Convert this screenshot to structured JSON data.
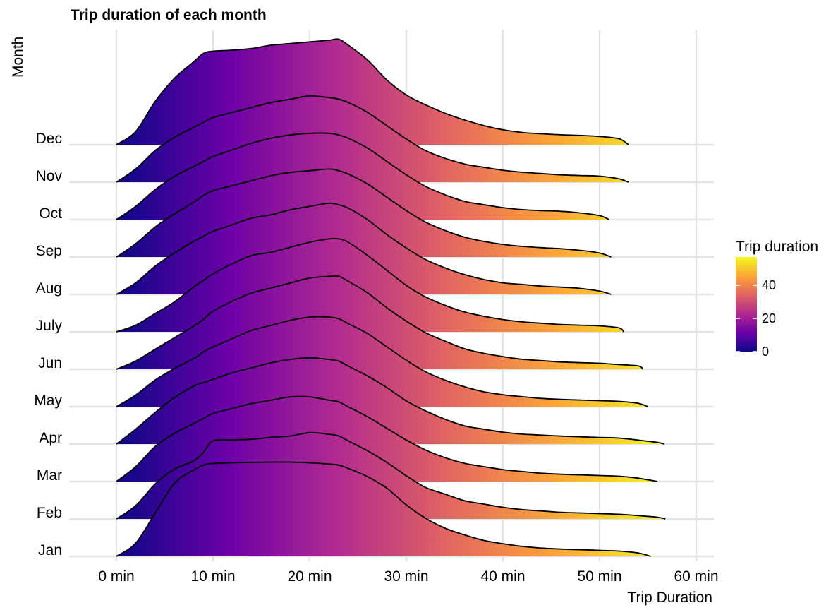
{
  "chart_data": {
    "type": "ridgeline",
    "title": "Trip duration of each month",
    "xlabel": "Trip Duration",
    "ylabel": "Month",
    "x_ticks": [
      {
        "value": 0,
        "label": "0 min"
      },
      {
        "value": 10,
        "label": "10 min"
      },
      {
        "value": 20,
        "label": "20 min"
      },
      {
        "value": 30,
        "label": "30 min"
      },
      {
        "value": 40,
        "label": "40 min"
      },
      {
        "value": 50,
        "label": "50 min"
      },
      {
        "value": 60,
        "label": "60 min"
      }
    ],
    "xlim": [
      -2.5,
      62
    ],
    "grid": true,
    "fill": "gradient along x (plasma palette)",
    "legend": {
      "title": "Trip duration",
      "placement": "right",
      "ticks": [
        0,
        20,
        40
      ],
      "range": [
        0,
        57
      ],
      "colors": [
        "#0d0887",
        "#6a00a8",
        "#b12a90",
        "#e16462",
        "#fca636",
        "#f0f921"
      ]
    },
    "x": [
      0,
      2,
      4,
      6,
      8,
      9,
      10,
      12,
      14,
      16,
      18,
      20,
      22,
      23,
      24,
      26,
      28,
      30,
      32,
      34,
      36,
      38,
      40,
      42,
      44,
      46,
      48,
      50,
      52,
      54,
      56
    ],
    "series": [
      {
        "name": "Jan",
        "end": 55.3,
        "heights": [
          0.0,
          0.4,
          1.3,
          2.2,
          2.6,
          2.75,
          2.8,
          2.82,
          2.83,
          2.84,
          2.84,
          2.82,
          2.78,
          2.75,
          2.65,
          2.4,
          2.05,
          1.55,
          1.15,
          0.85,
          0.65,
          0.48,
          0.38,
          0.3,
          0.25,
          0.22,
          0.2,
          0.18,
          0.16,
          0.1,
          0.05
        ]
      },
      {
        "name": "Feb",
        "end": 56.8,
        "heights": [
          0.0,
          0.4,
          1.05,
          1.5,
          1.75,
          2.0,
          2.35,
          2.38,
          2.4,
          2.46,
          2.5,
          2.6,
          2.55,
          2.5,
          2.35,
          2.05,
          1.7,
          1.3,
          0.95,
          0.75,
          0.55,
          0.45,
          0.35,
          0.28,
          0.24,
          0.2,
          0.18,
          0.16,
          0.14,
          0.1,
          0.05
        ]
      },
      {
        "name": "Mar",
        "end": 56.0,
        "heights": [
          0.0,
          0.45,
          1.05,
          1.45,
          1.75,
          1.9,
          2.05,
          2.2,
          2.35,
          2.45,
          2.55,
          2.55,
          2.45,
          2.4,
          2.25,
          1.95,
          1.6,
          1.25,
          0.95,
          0.72,
          0.55,
          0.45,
          0.36,
          0.3,
          0.25,
          0.22,
          0.2,
          0.18,
          0.16,
          0.1,
          0.05
        ]
      },
      {
        "name": "Apr",
        "end": 56.7,
        "heights": [
          0.0,
          0.45,
          0.95,
          1.4,
          1.75,
          1.85,
          1.95,
          2.15,
          2.3,
          2.45,
          2.55,
          2.6,
          2.55,
          2.5,
          2.35,
          2.05,
          1.7,
          1.3,
          1.0,
          0.75,
          0.55,
          0.45,
          0.36,
          0.3,
          0.27,
          0.24,
          0.22,
          0.2,
          0.18,
          0.12,
          0.05
        ]
      },
      {
        "name": "May",
        "end": 55.0,
        "heights": [
          0.0,
          0.35,
          0.8,
          1.15,
          1.45,
          1.65,
          1.8,
          2.05,
          2.3,
          2.45,
          2.6,
          2.7,
          2.7,
          2.65,
          2.5,
          2.2,
          1.8,
          1.4,
          1.05,
          0.8,
          0.6,
          0.45,
          0.36,
          0.3,
          0.25,
          0.22,
          0.2,
          0.18,
          0.16,
          0.1,
          0.05
        ]
      },
      {
        "name": "Jun",
        "end": 54.5,
        "heights": [
          0.0,
          0.25,
          0.6,
          0.95,
          1.3,
          1.5,
          1.75,
          2.05,
          2.3,
          2.45,
          2.6,
          2.75,
          2.8,
          2.8,
          2.65,
          2.3,
          1.85,
          1.45,
          1.1,
          0.85,
          0.62,
          0.48,
          0.38,
          0.3,
          0.26,
          0.22,
          0.2,
          0.18,
          0.14,
          0.1,
          0.05
        ]
      },
      {
        "name": "July",
        "end": 52.5,
        "heights": [
          0.0,
          0.2,
          0.55,
          0.9,
          1.35,
          1.55,
          1.75,
          2.05,
          2.3,
          2.4,
          2.55,
          2.7,
          2.8,
          2.8,
          2.7,
          2.3,
          1.85,
          1.4,
          1.05,
          0.8,
          0.6,
          0.47,
          0.37,
          0.3,
          0.26,
          0.22,
          0.2,
          0.18,
          0.12,
          0.05,
          0.05
        ]
      },
      {
        "name": "Aug",
        "end": 51.2,
        "heights": [
          0.0,
          0.35,
          0.85,
          1.25,
          1.6,
          1.75,
          1.9,
          2.1,
          2.3,
          2.4,
          2.55,
          2.65,
          2.75,
          2.7,
          2.6,
          2.25,
          1.8,
          1.4,
          1.05,
          0.8,
          0.6,
          0.45,
          0.35,
          0.3,
          0.25,
          0.22,
          0.18,
          0.1,
          0.05,
          0.05,
          0.05
        ]
      },
      {
        "name": "Sep",
        "end": 51.2,
        "heights": [
          0.0,
          0.4,
          0.9,
          1.3,
          1.65,
          1.85,
          2.0,
          2.15,
          2.3,
          2.45,
          2.55,
          2.6,
          2.65,
          2.6,
          2.5,
          2.2,
          1.8,
          1.4,
          1.05,
          0.8,
          0.6,
          0.47,
          0.38,
          0.32,
          0.28,
          0.25,
          0.2,
          0.12,
          0.05,
          0.05,
          0.05
        ]
      },
      {
        "name": "Oct",
        "end": 51.0,
        "heights": [
          0.0,
          0.4,
          0.9,
          1.3,
          1.6,
          1.75,
          1.9,
          2.1,
          2.3,
          2.45,
          2.55,
          2.6,
          2.6,
          2.55,
          2.45,
          2.15,
          1.75,
          1.35,
          1.0,
          0.75,
          0.55,
          0.45,
          0.36,
          0.3,
          0.27,
          0.25,
          0.2,
          0.12,
          0.05,
          0.05,
          0.05
        ]
      },
      {
        "name": "Nov",
        "end": 53.0,
        "heights": [
          0.0,
          0.4,
          0.95,
          1.35,
          1.65,
          1.8,
          1.95,
          2.1,
          2.25,
          2.4,
          2.5,
          2.6,
          2.55,
          2.5,
          2.4,
          2.1,
          1.7,
          1.3,
          0.95,
          0.72,
          0.55,
          0.45,
          0.36,
          0.3,
          0.26,
          0.22,
          0.2,
          0.18,
          0.1,
          0.05,
          0.05
        ]
      },
      {
        "name": "Dec",
        "end": 53.0,
        "heights": [
          0.0,
          0.4,
          1.3,
          2.0,
          2.5,
          2.75,
          2.82,
          2.85,
          2.9,
          3.0,
          3.05,
          3.1,
          3.15,
          3.18,
          3.0,
          2.55,
          1.95,
          1.5,
          1.2,
          0.95,
          0.75,
          0.58,
          0.45,
          0.37,
          0.33,
          0.3,
          0.28,
          0.25,
          0.18,
          0.1,
          0.05
        ]
      }
    ]
  }
}
